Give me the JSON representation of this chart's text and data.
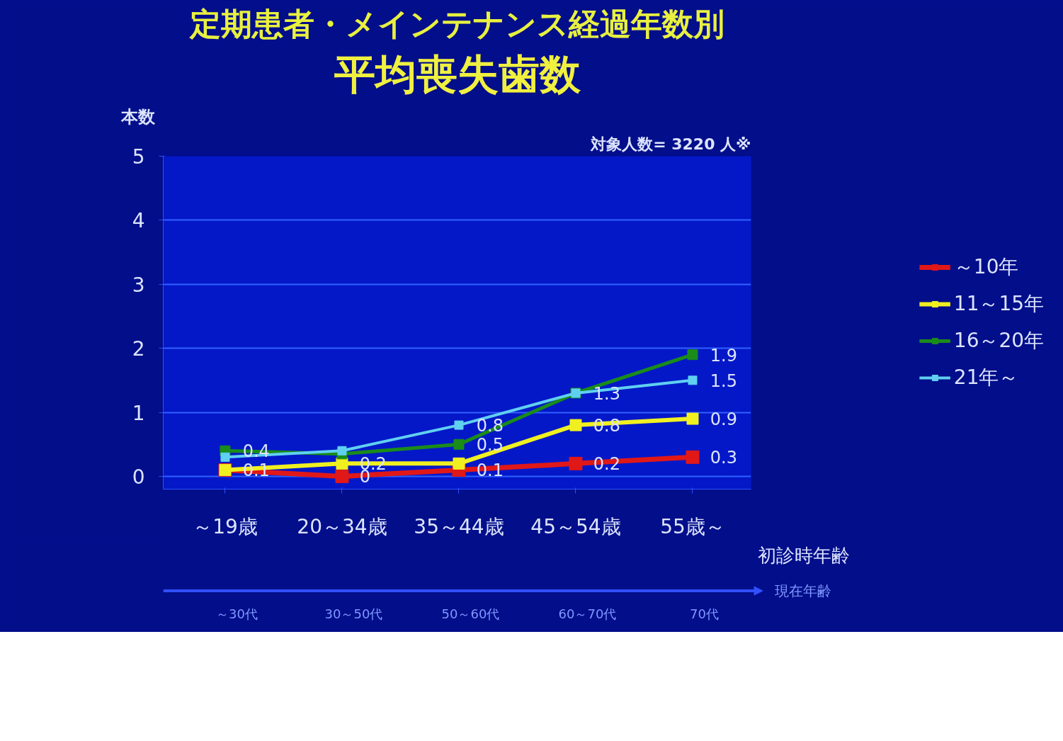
{
  "chart_data": {
    "type": "line",
    "title": "定期患者・メインテナンス経過年数別",
    "subtitle": "平均喪失歯数",
    "ylabel": "本数",
    "xlabel": "初診時年齢",
    "categories": [
      "～19歳",
      "20～34歳",
      "35～44歳",
      "45～54歳",
      "55歳～"
    ],
    "series": [
      {
        "name": "～10年",
        "color": "#e01818",
        "values": [
          0.1,
          0,
          0.1,
          0.2,
          0.3
        ],
        "value_labels": [
          "0.1",
          "0",
          "0.1",
          "0.2",
          "0.3"
        ]
      },
      {
        "name": "11～15年",
        "color": "#f0f020",
        "values": [
          0.1,
          0.2,
          0.2,
          0.8,
          0.9
        ],
        "value_labels": [
          null,
          "0.2",
          null,
          "0.8",
          "0.9"
        ]
      },
      {
        "name": "16～20年",
        "color": "#1a8c1a",
        "values": [
          0.4,
          0.35,
          0.5,
          1.3,
          1.9
        ],
        "value_labels": [
          "0.4",
          null,
          "0.5",
          null,
          "1.9"
        ]
      },
      {
        "name": "21年～",
        "color": "#60d0f0",
        "values": [
          0.3,
          0.4,
          0.8,
          1.3,
          1.5
        ],
        "value_labels": [
          null,
          null,
          "0.8",
          "1.3",
          "1.5"
        ]
      }
    ],
    "ylim": [
      -0.2,
      5
    ],
    "yticks": [
      0,
      1,
      2,
      3,
      4,
      5
    ],
    "grid": "y",
    "legend": "right",
    "marker": "square",
    "line_style": "solid",
    "annotations": [
      "対象人数= 3220 人※",
      "～30代",
      "30～50代",
      "50～60代",
      "60～70代",
      "70代",
      "現在年齢"
    ]
  }
}
